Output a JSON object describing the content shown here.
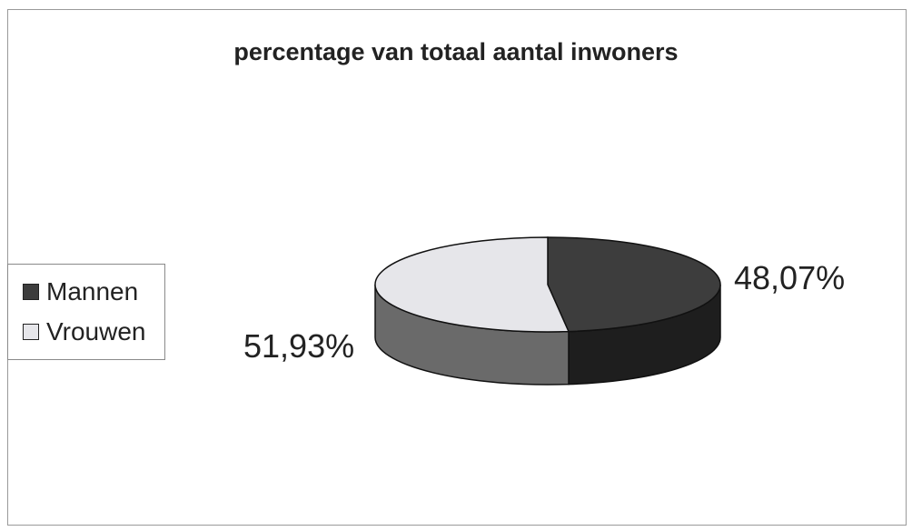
{
  "chart_data": {
    "type": "pie",
    "style": "3d",
    "title": "percentage van totaal aantal inwoners",
    "legend_position": "left",
    "slices": [
      {
        "name": "Mannen",
        "value": 48.07,
        "label": "48,07%",
        "color": "#3d3d3d"
      },
      {
        "name": "Vrouwen",
        "value": 51.93,
        "label": "51,93%",
        "color": "#e6e6ea"
      }
    ]
  }
}
